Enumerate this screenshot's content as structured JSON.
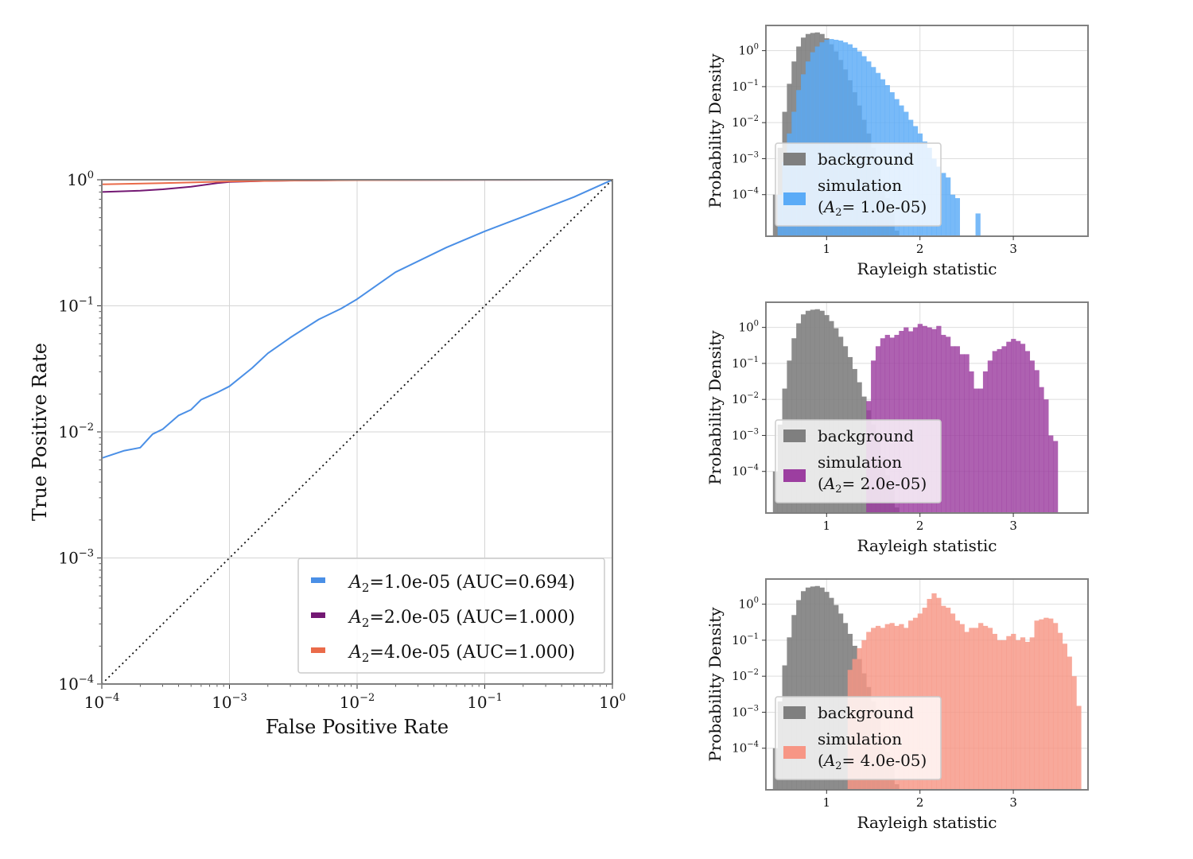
{
  "roc": {
    "xlabel": "False Positive Rate",
    "ylabel": "True Positive Rate",
    "x_ticks": [
      {
        "base": "10",
        "exp": "−4"
      },
      {
        "base": "10",
        "exp": "−3"
      },
      {
        "base": "10",
        "exp": "−2"
      },
      {
        "base": "10",
        "exp": "−1"
      },
      {
        "base": "10",
        "exp": "0"
      }
    ],
    "y_ticks": [
      {
        "base": "10",
        "exp": "−4"
      },
      {
        "base": "10",
        "exp": "−3"
      },
      {
        "base": "10",
        "exp": "−2"
      },
      {
        "base": "10",
        "exp": "−1"
      },
      {
        "base": "10",
        "exp": "0"
      }
    ],
    "legend": [
      {
        "sym": "A",
        "sub": "2",
        "text": "=1.0e-05 (AUC=0.694)"
      },
      {
        "sym": "A",
        "sub": "2",
        "text": "=2.0e-05 (AUC=1.000)"
      },
      {
        "sym": "A",
        "sub": "2",
        "text": "=4.0e-05 (AUC=1.000)"
      }
    ]
  },
  "histograms": [
    {
      "xlabel": "Rayleigh statistic",
      "ylabel": "Probability Density",
      "legend_background": "background",
      "legend_sim_line1": "simulation",
      "legend_sim_sym": "A",
      "legend_sim_sub": "2",
      "legend_sim_rest": "=  1.0e-05)",
      "legend_sim_open": "("
    },
    {
      "xlabel": "Rayleigh statistic",
      "ylabel": "Probability Density",
      "legend_background": "background",
      "legend_sim_line1": "simulation",
      "legend_sim_sym": "A",
      "legend_sim_sub": "2",
      "legend_sim_rest": "=  2.0e-05)",
      "legend_sim_open": "("
    },
    {
      "xlabel": "Rayleigh statistic",
      "ylabel": "Probability Density",
      "legend_background": "background",
      "legend_sim_line1": "simulation",
      "legend_sim_sym": "A",
      "legend_sim_sub": "2",
      "legend_sim_rest": "=  4.0e-05)",
      "legend_sim_open": "("
    }
  ],
  "colors": {
    "blue": "#4a8fe6",
    "purple": "#731873",
    "orange": "#ea6b4a",
    "sim_blue": "#5aabf7",
    "sim_purple": "#9c3ea0",
    "sim_orange": "#f79685",
    "background_gray": "#7f7f7f"
  },
  "chart_data": [
    {
      "type": "line",
      "title": "",
      "xlabel": "False Positive Rate",
      "ylabel": "True Positive Rate",
      "xscale": "log",
      "yscale": "log",
      "xlim": [
        0.0001,
        1
      ],
      "ylim": [
        0.0001,
        1
      ],
      "grid": true,
      "legend_position": "lower-right",
      "series": [
        {
          "name": "A2=1.0e-05 (AUC=0.694)",
          "x": [
            0.0001,
            0.00015,
            0.0002,
            0.00025,
            0.0003,
            0.0004,
            0.0005,
            0.0006,
            0.0008,
            0.001,
            0.0015,
            0.002,
            0.003,
            0.005,
            0.0075,
            0.01,
            0.02,
            0.05,
            0.1,
            0.2,
            0.5,
            1.0
          ],
          "y": [
            0.0062,
            0.0071,
            0.0075,
            0.0096,
            0.0105,
            0.0135,
            0.015,
            0.018,
            0.0205,
            0.023,
            0.032,
            0.042,
            0.056,
            0.078,
            0.095,
            0.113,
            0.185,
            0.29,
            0.39,
            0.51,
            0.73,
            1.0
          ]
        },
        {
          "name": "A2=2.0e-05 (AUC=1.000)",
          "x": [
            0.0001,
            0.0002,
            0.0003,
            0.0005,
            0.0008,
            0.001,
            0.002,
            0.005,
            0.01,
            0.1,
            1.0
          ],
          "y": [
            0.8,
            0.82,
            0.84,
            0.88,
            0.94,
            0.96,
            0.98,
            0.99,
            0.995,
            0.999,
            1.0
          ]
        },
        {
          "name": "A2=4.0e-05 (AUC=1.000)",
          "x": [
            0.0001,
            0.0003,
            0.001,
            0.003,
            0.01,
            0.1,
            1.0
          ],
          "y": [
            0.92,
            0.94,
            0.97,
            0.985,
            0.993,
            0.998,
            1.0
          ]
        },
        {
          "name": "random (diagonal)",
          "style": "dotted",
          "x": [
            0.0001,
            1.0
          ],
          "y": [
            0.0001,
            1.0
          ]
        }
      ]
    },
    {
      "type": "bar",
      "subtype": "histogram",
      "xlabel": "Rayleigh statistic",
      "ylabel": "Probability Density",
      "yscale": "log",
      "xlim": [
        0.35,
        3.8
      ],
      "ylim": [
        7e-06,
        5
      ],
      "x_ticks": [
        "1",
        "2",
        "3"
      ],
      "y_ticks": [
        "10^-4",
        "10^-3",
        "10^-2",
        "10^-1",
        "10^0"
      ],
      "legend_position": "lower-left",
      "series": [
        {
          "name": "background",
          "bin_centers": [
            0.45,
            0.5,
            0.55,
            0.6,
            0.65,
            0.7,
            0.75,
            0.8,
            0.85,
            0.9,
            0.95,
            1.0,
            1.05,
            1.1,
            1.15,
            1.2,
            1.25,
            1.3,
            1.35,
            1.4,
            1.45,
            1.5,
            1.55,
            1.6,
            1.65,
            1.7,
            1.75,
            1.8
          ],
          "values": [
            0.0001,
            0.002,
            0.02,
            0.12,
            0.5,
            1.3,
            2.3,
            2.9,
            3.1,
            3.2,
            2.9,
            2.2,
            1.5,
            0.95,
            0.55,
            0.3,
            0.15,
            0.07,
            0.03,
            0.012,
            0.005,
            0.002,
            0.0007,
            0.00025,
            8e-05,
            3e-05,
            1e-05,
            4e-06
          ]
        },
        {
          "name": "simulation (A2 = 1.0e-05)",
          "bin_centers": [
            0.5,
            0.55,
            0.6,
            0.65,
            0.7,
            0.75,
            0.8,
            0.85,
            0.9,
            0.95,
            1.0,
            1.05,
            1.1,
            1.15,
            1.2,
            1.25,
            1.3,
            1.35,
            1.4,
            1.45,
            1.5,
            1.55,
            1.6,
            1.65,
            1.7,
            1.75,
            1.8,
            1.85,
            1.9,
            1.95,
            2.0,
            2.05,
            2.1,
            2.15,
            2.2,
            2.25,
            2.3,
            2.35,
            2.4,
            2.62
          ],
          "values": [
            0.0001,
            0.0008,
            0.005,
            0.02,
            0.08,
            0.22,
            0.5,
            0.9,
            1.3,
            1.7,
            2.0,
            2.1,
            2.0,
            1.9,
            1.7,
            1.5,
            1.2,
            0.95,
            0.7,
            0.5,
            0.35,
            0.24,
            0.16,
            0.11,
            0.07,
            0.045,
            0.03,
            0.02,
            0.012,
            0.008,
            0.005,
            0.003,
            0.002,
            0.001,
            0.0006,
            0.0004,
            0.0003,
            0.0001,
            8e-05,
            3e-05
          ]
        }
      ]
    },
    {
      "type": "bar",
      "subtype": "histogram",
      "xlabel": "Rayleigh statistic",
      "ylabel": "Probability Density",
      "yscale": "log",
      "xlim": [
        0.35,
        3.8
      ],
      "ylim": [
        7e-06,
        5
      ],
      "x_ticks": [
        "1",
        "2",
        "3"
      ],
      "y_ticks": [
        "10^-4",
        "10^-3",
        "10^-2",
        "10^-1",
        "10^0"
      ],
      "legend_position": "lower-left",
      "series": [
        {
          "name": "background",
          "bin_centers": [
            0.45,
            0.5,
            0.55,
            0.6,
            0.65,
            0.7,
            0.75,
            0.8,
            0.85,
            0.9,
            0.95,
            1.0,
            1.05,
            1.1,
            1.15,
            1.2,
            1.25,
            1.3,
            1.35,
            1.4,
            1.45,
            1.5,
            1.55,
            1.6,
            1.65,
            1.7,
            1.75,
            1.8
          ],
          "values": [
            0.0001,
            0.002,
            0.02,
            0.12,
            0.5,
            1.3,
            2.3,
            2.9,
            3.1,
            3.2,
            2.9,
            2.2,
            1.5,
            0.95,
            0.55,
            0.3,
            0.15,
            0.07,
            0.03,
            0.012,
            0.005,
            0.002,
            0.0007,
            0.00025,
            8e-05,
            3e-05,
            1e-05,
            4e-06
          ]
        },
        {
          "name": "simulation (A2 = 2.0e-05)",
          "bin_centers": [
            1.45,
            1.5,
            1.55,
            1.6,
            1.65,
            1.7,
            1.75,
            1.8,
            1.85,
            1.9,
            1.95,
            2.0,
            2.05,
            2.1,
            2.15,
            2.2,
            2.25,
            2.3,
            2.35,
            2.4,
            2.45,
            2.5,
            2.55,
            2.6,
            2.65,
            2.7,
            2.75,
            2.8,
            2.85,
            2.9,
            2.95,
            3.0,
            3.05,
            3.1,
            3.15,
            3.2,
            3.25,
            3.3,
            3.35,
            3.4,
            3.45
          ],
          "values": [
            0.009,
            0.12,
            0.3,
            0.5,
            0.62,
            0.52,
            0.62,
            0.8,
            1.0,
            0.78,
            1.0,
            1.25,
            1.1,
            1.0,
            0.9,
            1.1,
            0.62,
            0.55,
            0.3,
            0.3,
            0.18,
            0.18,
            0.06,
            0.02,
            0.02,
            0.06,
            0.12,
            0.22,
            0.25,
            0.3,
            0.4,
            0.48,
            0.42,
            0.35,
            0.22,
            0.12,
            0.065,
            0.022,
            0.01,
            0.001,
            0.0007
          ]
        }
      ]
    },
    {
      "type": "bar",
      "subtype": "histogram",
      "xlabel": "Rayleigh statistic",
      "ylabel": "Probability Density",
      "yscale": "log",
      "xlim": [
        0.35,
        3.8
      ],
      "ylim": [
        7e-06,
        5
      ],
      "x_ticks": [
        "1",
        "2",
        "3"
      ],
      "y_ticks": [
        "10^-4",
        "10^-3",
        "10^-2",
        "10^-1",
        "10^0"
      ],
      "legend_position": "lower-left",
      "series": [
        {
          "name": "background",
          "bin_centers": [
            0.45,
            0.5,
            0.55,
            0.6,
            0.65,
            0.7,
            0.75,
            0.8,
            0.85,
            0.9,
            0.95,
            1.0,
            1.05,
            1.1,
            1.15,
            1.2,
            1.25,
            1.3,
            1.35,
            1.4,
            1.45,
            1.5,
            1.55,
            1.6,
            1.65,
            1.7,
            1.75,
            1.8
          ],
          "values": [
            0.0001,
            0.002,
            0.02,
            0.12,
            0.5,
            1.3,
            2.3,
            2.9,
            3.1,
            3.2,
            2.9,
            2.2,
            1.5,
            0.95,
            0.55,
            0.3,
            0.15,
            0.07,
            0.03,
            0.012,
            0.005,
            0.002,
            0.0007,
            0.00025,
            8e-05,
            3e-05,
            1e-05,
            4e-06
          ]
        },
        {
          "name": "simulation (A2 = 4.0e-05)",
          "bin_centers": [
            1.25,
            1.3,
            1.35,
            1.4,
            1.45,
            1.5,
            1.55,
            1.6,
            1.65,
            1.7,
            1.75,
            1.8,
            1.85,
            1.9,
            1.95,
            2.0,
            2.05,
            2.1,
            2.15,
            2.2,
            2.25,
            2.3,
            2.35,
            2.4,
            2.45,
            2.5,
            2.55,
            2.6,
            2.65,
            2.7,
            2.75,
            2.8,
            2.85,
            2.9,
            2.95,
            3.0,
            3.05,
            3.1,
            3.15,
            3.2,
            3.25,
            3.3,
            3.35,
            3.4,
            3.45,
            3.5,
            3.55,
            3.6,
            3.65,
            3.7
          ],
          "values": [
            0.015,
            0.03,
            0.06,
            0.1,
            0.17,
            0.22,
            0.25,
            0.22,
            0.28,
            0.3,
            0.25,
            0.28,
            0.22,
            0.35,
            0.42,
            0.55,
            0.8,
            1.4,
            2.0,
            1.5,
            0.9,
            0.8,
            0.55,
            0.35,
            0.28,
            0.17,
            0.22,
            0.22,
            0.3,
            0.25,
            0.22,
            0.15,
            0.1,
            0.1,
            0.13,
            0.15,
            0.1,
            0.12,
            0.09,
            0.12,
            0.35,
            0.38,
            0.42,
            0.4,
            0.3,
            0.16,
            0.08,
            0.035,
            0.01,
            0.0015
          ]
        }
      ]
    }
  ]
}
